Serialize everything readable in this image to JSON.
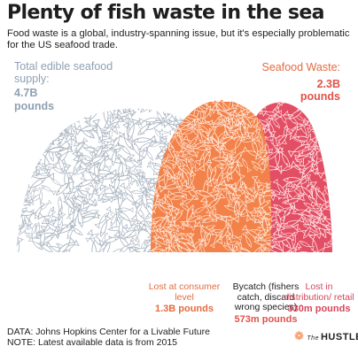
{
  "header": {
    "title": "Plenty of fish waste in the sea",
    "subtitle": "Food waste is a global, industry-spanning issue, but it's especially problematic for the US seafood trade."
  },
  "total": {
    "label": "Total edible seafood supply:",
    "value_label": "4.7B pounds"
  },
  "waste": {
    "label": "Seafood Waste:",
    "value_label": "2.3B pounds"
  },
  "categories": [
    {
      "name": "Lost at consumer level",
      "value_label": "1.3B pounds"
    },
    {
      "name": "Bycatch (fishers catch, discard wrong species)",
      "value_label": "573m pounds"
    },
    {
      "name": "Lost in distribution/ retail",
      "value_label": "330m pounds"
    }
  ],
  "footer": {
    "source": "DATA: Johns Hopkins Center for a Livable Future",
    "note": "NOTE: Latest available data is from 2015"
  },
  "logo": {
    "the": "The",
    "name": "HUSTLE"
  },
  "colors": {
    "total": "#c9cfd6",
    "consumer": "#f2824a",
    "bycatch": "#f47a62",
    "distribution": "#e24e63"
  },
  "chart_data": {
    "type": "area",
    "unit": "pounds (billions)",
    "total": {
      "label": "Total edible seafood supply",
      "value": 4.7
    },
    "waste": {
      "label": "Seafood Waste",
      "value": 2.3
    },
    "categories": [
      "Lost at consumer level",
      "Bycatch (fishers catch, discard wrong species)",
      "Lost in distribution/ retail"
    ],
    "values": [
      1.3,
      0.573,
      0.33
    ]
  }
}
